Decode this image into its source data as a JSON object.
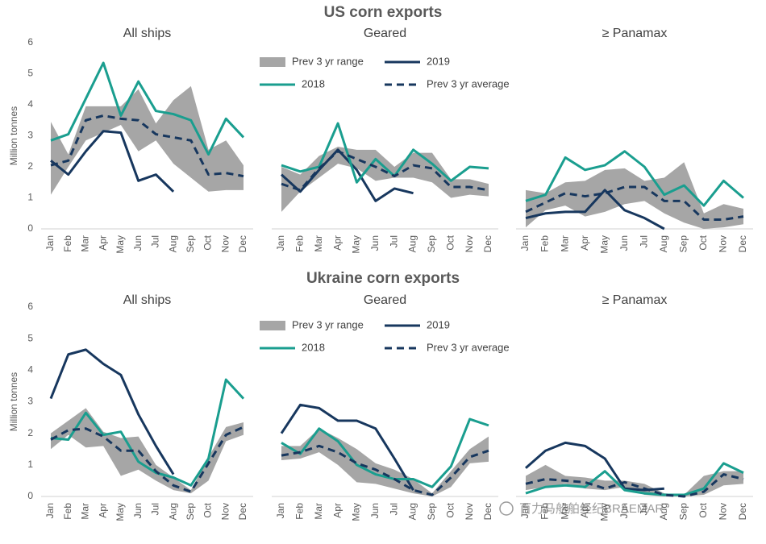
{
  "headings": [
    "US corn exports",
    "Ukraine corn exports"
  ],
  "watermark": "百力马船舶经纪BRAEMAR",
  "chart_data": [
    {
      "type": "line",
      "title": "All ships",
      "ylabel": "Million tonnes",
      "categories": [
        "Jan",
        "Feb",
        "Mar",
        "Apr",
        "May",
        "Jun",
        "Jul",
        "Aug",
        "Sep",
        "Oct",
        "Nov",
        "Dec"
      ],
      "ylim": [
        0,
        6
      ],
      "yticks": [
        0,
        1,
        2,
        3,
        4,
        5,
        6
      ],
      "series": [
        {
          "name": "Prev 3 yr range",
          "type": "range",
          "color": "#a6a6a6",
          "low": [
            1.1,
            2.0,
            2.85,
            3.1,
            3.35,
            2.5,
            2.85,
            2.1,
            1.65,
            1.2,
            1.25,
            1.25
          ],
          "high": [
            3.45,
            2.4,
            3.95,
            3.95,
            3.95,
            4.5,
            3.4,
            4.15,
            4.6,
            2.55,
            2.85,
            2.05
          ]
        },
        {
          "name": "2019",
          "color": "#17375e",
          "values": [
            2.2,
            1.75,
            2.5,
            3.15,
            3.1,
            1.55,
            1.75,
            1.2,
            null,
            null,
            null,
            null
          ]
        },
        {
          "name": "2018",
          "color": "#1a9e8f",
          "values": [
            2.85,
            3.05,
            4.2,
            5.35,
            3.65,
            4.75,
            3.8,
            3.7,
            3.5,
            2.4,
            3.55,
            2.95
          ]
        },
        {
          "name": "Prev 3 yr average",
          "color": "#17375e",
          "dash": true,
          "values": [
            2.05,
            2.2,
            3.5,
            3.65,
            3.55,
            3.5,
            3.05,
            2.95,
            2.85,
            1.75,
            1.8,
            1.7
          ]
        }
      ]
    },
    {
      "type": "line",
      "title": "Geared",
      "legend": true,
      "categories": [
        "Jan",
        "Feb",
        "Mar",
        "Apr",
        "May",
        "Jun",
        "Jul",
        "Aug",
        "Sep",
        "Oct",
        "Nov",
        "Dec"
      ],
      "ylim": [
        0,
        6
      ],
      "series": [
        {
          "name": "Prev 3 yr range",
          "type": "range",
          "color": "#a6a6a6",
          "low": [
            0.55,
            1.2,
            1.65,
            2.1,
            1.95,
            1.55,
            1.65,
            1.65,
            1.5,
            1.0,
            1.1,
            1.05
          ],
          "high": [
            2.0,
            1.75,
            2.35,
            2.65,
            2.55,
            2.55,
            2.0,
            2.45,
            2.45,
            1.6,
            1.6,
            1.45
          ]
        },
        {
          "name": "2019",
          "color": "#17375e",
          "values": [
            1.75,
            1.2,
            1.9,
            2.55,
            1.9,
            0.9,
            1.3,
            1.15,
            null,
            null,
            null,
            null
          ]
        },
        {
          "name": "2018",
          "color": "#1a9e8f",
          "values": [
            2.05,
            1.85,
            2.0,
            3.4,
            1.5,
            2.25,
            1.7,
            2.55,
            2.1,
            1.55,
            2.0,
            1.95
          ]
        },
        {
          "name": "Prev 3 yr average",
          "color": "#17375e",
          "dash": true,
          "values": [
            1.45,
            1.25,
            1.95,
            2.5,
            2.25,
            2.0,
            1.7,
            2.05,
            1.95,
            1.35,
            1.35,
            1.25
          ]
        }
      ]
    },
    {
      "type": "line",
      "title": "≥ Panamax",
      "categories": [
        "Jan",
        "Feb",
        "Mar",
        "Apr",
        "May",
        "Jun",
        "Jul",
        "Aug",
        "Sep",
        "Oct",
        "Nov",
        "Dec"
      ],
      "ylim": [
        0,
        6
      ],
      "series": [
        {
          "name": "Prev 3 yr range",
          "type": "range",
          "color": "#a6a6a6",
          "low": [
            0.05,
            0.6,
            0.75,
            0.4,
            0.55,
            0.8,
            0.9,
            0.5,
            0.2,
            0.0,
            0.05,
            0.15
          ],
          "high": [
            1.25,
            1.15,
            1.5,
            1.55,
            1.9,
            1.95,
            1.55,
            1.65,
            2.15,
            0.5,
            0.8,
            0.65
          ]
        },
        {
          "name": "2019",
          "color": "#17375e",
          "values": [
            0.35,
            0.5,
            0.55,
            0.55,
            1.25,
            0.6,
            0.35,
            0.0,
            null,
            null,
            null,
            null
          ]
        },
        {
          "name": "2018",
          "color": "#1a9e8f",
          "values": [
            0.9,
            1.1,
            2.3,
            1.9,
            2.05,
            2.5,
            2.0,
            1.1,
            1.4,
            0.75,
            1.55,
            1.0
          ]
        },
        {
          "name": "Prev 3 yr average",
          "color": "#17375e",
          "dash": true,
          "values": [
            0.55,
            0.85,
            1.15,
            1.05,
            1.15,
            1.35,
            1.35,
            0.9,
            0.9,
            0.3,
            0.3,
            0.4
          ]
        }
      ]
    },
    {
      "type": "line",
      "title": "All ships",
      "ylabel": "Million tonnes",
      "categories": [
        "Jan",
        "Feb",
        "Mar",
        "Apr",
        "May",
        "Jun",
        "Jul",
        "Aug",
        "Sep",
        "Oct",
        "Nov",
        "Dec"
      ],
      "ylim": [
        0,
        6
      ],
      "yticks": [
        0,
        1,
        2,
        3,
        4,
        5,
        6
      ],
      "series": [
        {
          "name": "Prev 3 yr range",
          "type": "range",
          "color": "#a6a6a6",
          "low": [
            1.5,
            1.95,
            1.55,
            1.6,
            0.65,
            0.85,
            0.5,
            0.2,
            0.1,
            0.5,
            1.75,
            1.95
          ],
          "high": [
            2.0,
            2.4,
            2.8,
            2.05,
            1.85,
            1.9,
            1.0,
            0.6,
            0.2,
            1.25,
            2.2,
            2.35
          ]
        },
        {
          "name": "2019",
          "color": "#17375e",
          "values": [
            3.1,
            4.5,
            4.65,
            4.2,
            3.85,
            2.6,
            1.6,
            0.7,
            null,
            null,
            null,
            null
          ]
        },
        {
          "name": "2018",
          "color": "#1a9e8f",
          "values": [
            1.85,
            1.8,
            2.65,
            1.95,
            2.05,
            1.1,
            0.75,
            0.6,
            0.35,
            1.2,
            3.7,
            3.1
          ]
        },
        {
          "name": "Prev 3 yr average",
          "color": "#17375e",
          "dash": true,
          "values": [
            1.8,
            2.1,
            2.15,
            1.9,
            1.45,
            1.45,
            0.8,
            0.35,
            0.15,
            1.05,
            1.95,
            2.2
          ]
        }
      ]
    },
    {
      "type": "line",
      "title": "Geared",
      "legend": true,
      "categories": [
        "Jan",
        "Feb",
        "Mar",
        "Apr",
        "May",
        "Jun",
        "Jul",
        "Aug",
        "Sep",
        "Oct",
        "Nov",
        "Dec"
      ],
      "ylim": [
        0,
        6
      ],
      "series": [
        {
          "name": "Prev 3 yr range",
          "type": "range",
          "color": "#a6a6a6",
          "low": [
            1.15,
            1.2,
            1.4,
            1.0,
            0.45,
            0.4,
            0.25,
            0.1,
            0.0,
            0.3,
            1.05,
            1.1
          ],
          "high": [
            1.6,
            1.6,
            2.15,
            1.85,
            1.5,
            1.05,
            0.85,
            0.55,
            0.1,
            0.8,
            1.5,
            1.9
          ]
        },
        {
          "name": "2019",
          "color": "#17375e",
          "values": [
            2.0,
            2.9,
            2.8,
            2.4,
            2.4,
            2.15,
            1.2,
            0.2,
            null,
            null,
            null,
            null
          ]
        },
        {
          "name": "2018",
          "color": "#1a9e8f",
          "values": [
            1.7,
            1.35,
            2.15,
            1.75,
            1.0,
            0.7,
            0.55,
            0.55,
            0.3,
            0.95,
            2.45,
            2.25
          ]
        },
        {
          "name": "Prev 3 yr average",
          "color": "#17375e",
          "dash": true,
          "values": [
            1.3,
            1.4,
            1.6,
            1.4,
            1.05,
            0.85,
            0.55,
            0.2,
            0.05,
            0.6,
            1.25,
            1.45
          ]
        }
      ]
    },
    {
      "type": "line",
      "title": "≥ Panamax",
      "categories": [
        "Jan",
        "Feb",
        "Mar",
        "Apr",
        "May",
        "Jun",
        "Jul",
        "Aug",
        "Sep",
        "Oct",
        "Nov",
        "Dec"
      ],
      "ylim": [
        0,
        6
      ],
      "series": [
        {
          "name": "Prev 3 yr range",
          "type": "range",
          "color": "#a6a6a6",
          "low": [
            0.2,
            0.3,
            0.4,
            0.25,
            0.2,
            0.3,
            0.05,
            0.0,
            0.0,
            0.05,
            0.35,
            0.4
          ],
          "high": [
            0.65,
            1.0,
            0.65,
            0.6,
            0.5,
            0.5,
            0.4,
            0.1,
            0.05,
            0.65,
            0.8,
            0.8
          ]
        },
        {
          "name": "2019",
          "color": "#17375e",
          "values": [
            0.9,
            1.45,
            1.7,
            1.6,
            1.2,
            0.25,
            0.2,
            0.25,
            null,
            null,
            null,
            null
          ]
        },
        {
          "name": "2018",
          "color": "#1a9e8f",
          "values": [
            0.1,
            0.3,
            0.35,
            0.3,
            0.8,
            0.2,
            0.1,
            0.05,
            0.05,
            0.25,
            1.05,
            0.75
          ]
        },
        {
          "name": "Prev 3 yr average",
          "color": "#17375e",
          "dash": true,
          "values": [
            0.4,
            0.55,
            0.5,
            0.45,
            0.25,
            0.45,
            0.25,
            0.05,
            0.0,
            0.15,
            0.7,
            0.55
          ]
        }
      ]
    }
  ]
}
